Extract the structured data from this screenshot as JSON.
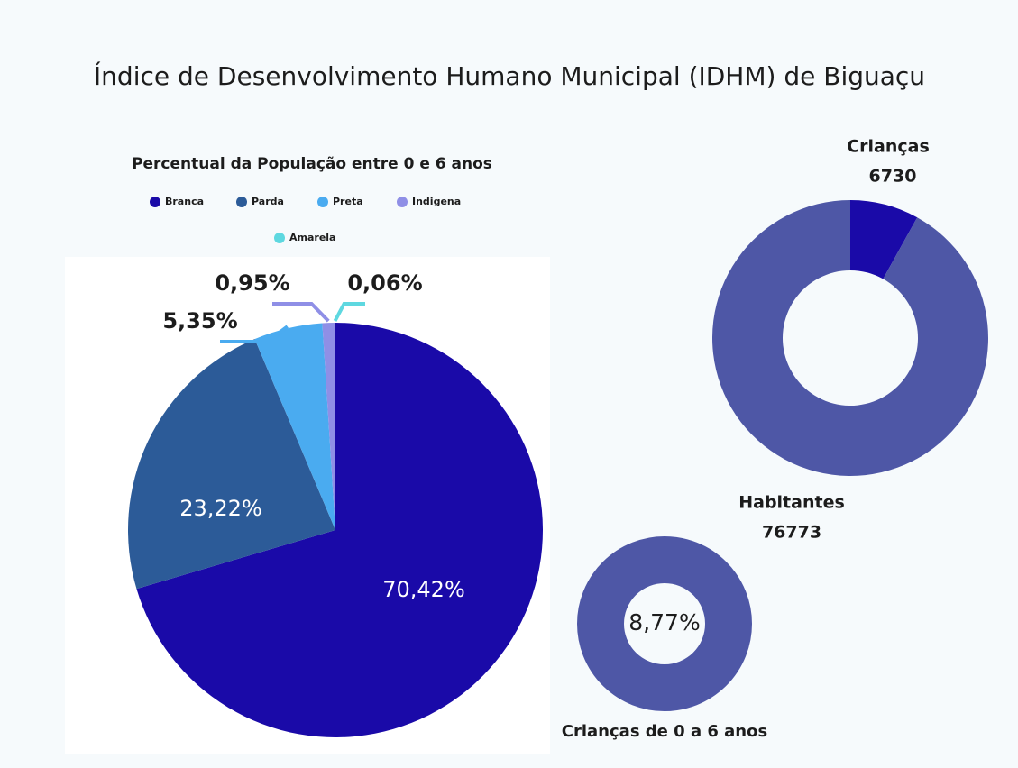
{
  "title": "Índice de Desenvolvimento Humano Municipal (IDHM) de Biguaçu",
  "chart_data": [
    {
      "type": "pie",
      "title": "Percentual da População entre 0 e 6 anos",
      "categories": [
        "Branca",
        "Parda",
        "Preta",
        "Indigena",
        "Amarela"
      ],
      "values": [
        70.42,
        23.22,
        5.35,
        0.95,
        0.06
      ],
      "value_labels": [
        "70,42%",
        "23,22%",
        "5,35%",
        "0,95%",
        "0,06%"
      ],
      "colors": [
        "#1a0aa8",
        "#2c5b98",
        "#4aabf0",
        "#8f8fe6",
        "#5ed8e0"
      ]
    },
    {
      "type": "donut",
      "categories": [
        "Crianças",
        "Habitantes"
      ],
      "values": [
        6730,
        76773
      ],
      "colors": [
        "#1a0aa8",
        "#4e57a6"
      ]
    },
    {
      "type": "ring",
      "label": "Crianças de 0 a 6 anos",
      "values": [
        8.77
      ],
      "value_labels": [
        "8,77%"
      ],
      "color": "#4e57a6"
    }
  ]
}
